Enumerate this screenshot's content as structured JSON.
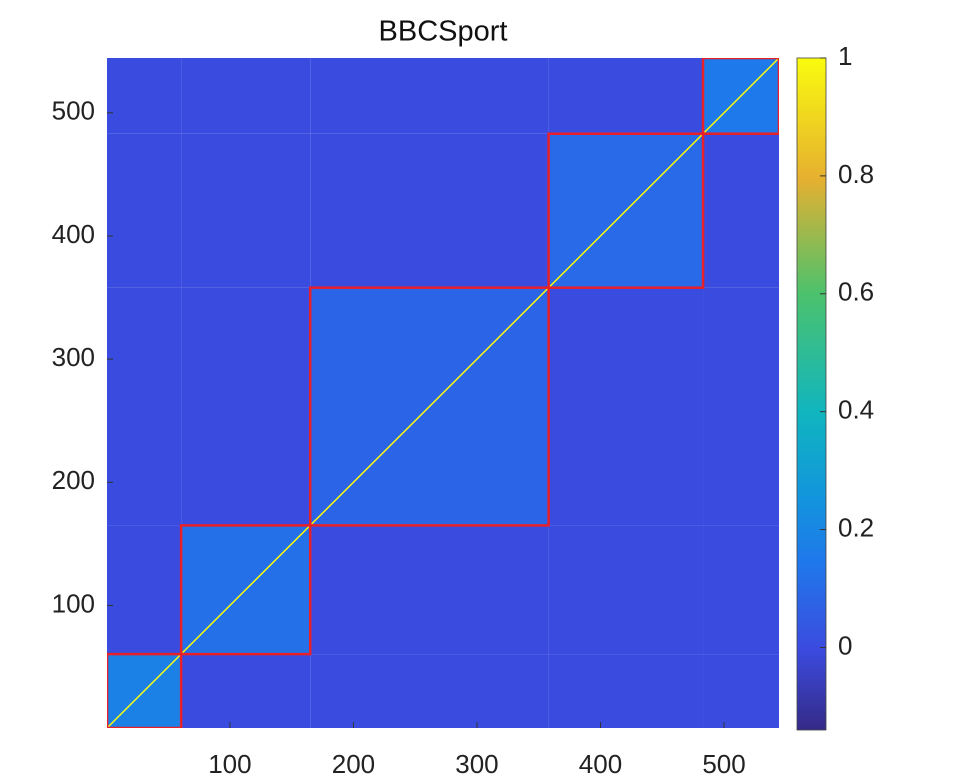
{
  "chart_data": {
    "type": "heatmap",
    "title": "BBCSport",
    "xlim": [
      0.5,
      544.5
    ],
    "ylim": [
      0.5,
      544.5
    ],
    "xticks": [
      100,
      200,
      300,
      400,
      500
    ],
    "yticks": [
      100,
      200,
      300,
      400,
      500
    ],
    "boundaries": [
      0.5,
      60.5,
      165,
      358,
      483,
      544.5
    ],
    "values": [
      [
        0.18,
        0.0,
        0.0,
        0.0,
        0.0
      ],
      [
        0.0,
        0.12,
        0.0,
        0.0,
        0.0
      ],
      [
        0.0,
        0.0,
        0.08,
        0.0,
        0.0
      ],
      [
        0.0,
        0.0,
        0.0,
        0.1,
        0.0
      ],
      [
        0.0,
        0.0,
        0.0,
        0.0,
        0.15
      ]
    ],
    "diagonal": 1,
    "block_color": "#e8202a",
    "clim": [
      -0.14,
      1
    ],
    "cticks": [
      0,
      0.2,
      0.4,
      0.6,
      0.8,
      1
    ]
  }
}
